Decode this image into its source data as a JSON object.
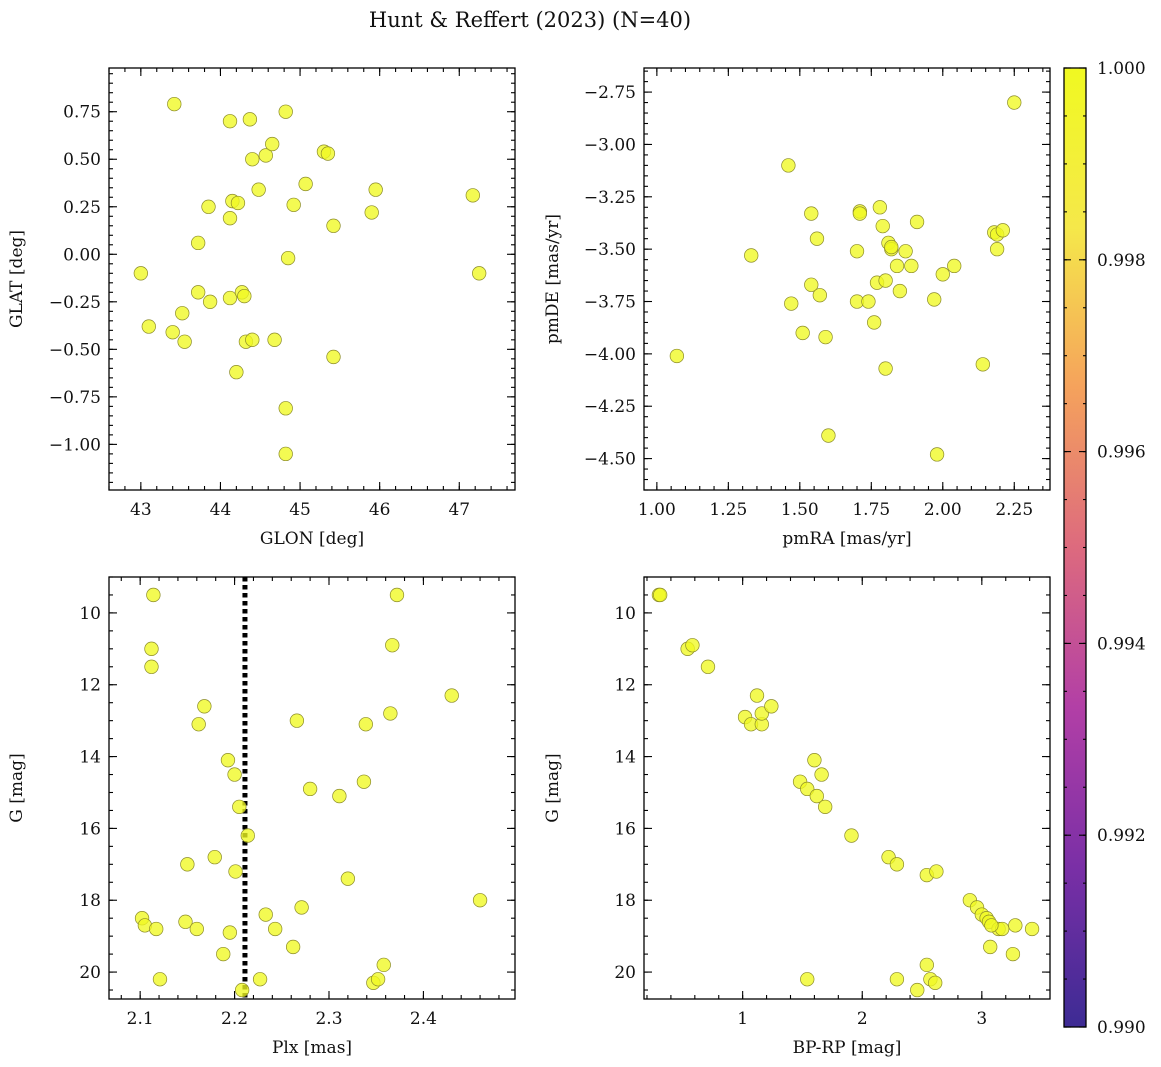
{
  "figure": {
    "title": "Hunt & Reffert (2023) (N=40)",
    "point_color": "#f0f921"
  },
  "colorbar": {
    "vmin": 0.99,
    "vmax": 1.0,
    "ticks": [
      "0.990",
      "0.992",
      "0.994",
      "0.996",
      "0.998",
      "1.000"
    ],
    "colormap": "plasma",
    "stops": [
      "#3d2b94",
      "#7a2fa6",
      "#b23fa6",
      "#dd6a7e",
      "#f5a25c",
      "#f5e84a",
      "#f0f921"
    ]
  },
  "chart_data": [
    {
      "id": "glon-glat",
      "type": "scatter",
      "title": "",
      "xlabel": "GLON [deg]",
      "ylabel": "GLAT [deg]",
      "xlim": [
        42.6,
        47.7
      ],
      "ylim": [
        -1.24,
        0.98
      ],
      "xticks": [
        43,
        44,
        45,
        46,
        47
      ],
      "xticklabels": [
        "43",
        "44",
        "45",
        "46",
        "47"
      ],
      "yticks": [
        -1.0,
        -0.75,
        -0.5,
        -0.25,
        0.0,
        0.25,
        0.5,
        0.75
      ],
      "yticklabels": [
        "−1.00",
        "−0.75",
        "−0.50",
        "−0.25",
        "0.00",
        "0.25",
        "0.50",
        "0.75"
      ],
      "xminor": 0.2,
      "yminor": 0.05,
      "points": [
        [
          43.0,
          -0.1
        ],
        [
          43.1,
          -0.38
        ],
        [
          43.42,
          0.79
        ],
        [
          43.4,
          -0.41
        ],
        [
          43.52,
          -0.31
        ],
        [
          43.55,
          -0.46
        ],
        [
          43.72,
          0.06
        ],
        [
          43.72,
          -0.2
        ],
        [
          43.85,
          0.25
        ],
        [
          43.87,
          -0.25
        ],
        [
          44.12,
          0.7
        ],
        [
          44.12,
          0.19
        ],
        [
          44.12,
          -0.23
        ],
        [
          44.15,
          0.28
        ],
        [
          44.2,
          -0.62
        ],
        [
          44.22,
          0.27
        ],
        [
          44.27,
          -0.2
        ],
        [
          44.3,
          -0.22
        ],
        [
          44.32,
          -0.46
        ],
        [
          44.37,
          0.71
        ],
        [
          44.4,
          0.5
        ],
        [
          44.4,
          -0.45
        ],
        [
          44.48,
          0.34
        ],
        [
          44.57,
          0.52
        ],
        [
          44.65,
          0.58
        ],
        [
          44.82,
          0.75
        ],
        [
          44.82,
          -0.81
        ],
        [
          44.82,
          -1.05
        ],
        [
          44.85,
          -0.02
        ],
        [
          44.92,
          0.26
        ],
        [
          45.07,
          0.37
        ],
        [
          45.3,
          0.54
        ],
        [
          45.35,
          0.53
        ],
        [
          45.42,
          0.15
        ],
        [
          45.42,
          -0.54
        ],
        [
          45.9,
          0.22
        ],
        [
          45.95,
          0.34
        ],
        [
          47.17,
          0.31
        ],
        [
          47.25,
          -0.1
        ],
        [
          44.68,
          -0.45
        ]
      ]
    },
    {
      "id": "pmra-pmde",
      "type": "scatter",
      "title": "",
      "xlabel": "pmRA [mas/yr]",
      "ylabel": "pmDE [mas/yr]",
      "xlim": [
        0.955,
        2.375
      ],
      "ylim": [
        -4.65,
        -2.635
      ],
      "xticks": [
        1.0,
        1.25,
        1.5,
        1.75,
        2.0,
        2.25
      ],
      "xticklabels": [
        "1.00",
        "1.25",
        "1.50",
        "1.75",
        "2.00",
        "2.25"
      ],
      "yticks": [
        -4.5,
        -4.25,
        -4.0,
        -3.75,
        -3.5,
        -3.25,
        -3.0,
        -2.75
      ],
      "yticklabels": [
        "−4.50",
        "−4.25",
        "−4.00",
        "−3.75",
        "−3.50",
        "−3.25",
        "−3.00",
        "−2.75"
      ],
      "xminor": 0.05,
      "yminor": 0.05,
      "points": [
        [
          1.07,
          -4.01
        ],
        [
          1.33,
          -3.53
        ],
        [
          1.46,
          -3.1
        ],
        [
          1.47,
          -3.76
        ],
        [
          1.51,
          -3.9
        ],
        [
          1.54,
          -3.33
        ],
        [
          1.54,
          -3.67
        ],
        [
          1.56,
          -3.45
        ],
        [
          1.57,
          -3.72
        ],
        [
          1.59,
          -3.92
        ],
        [
          1.6,
          -4.39
        ],
        [
          1.7,
          -3.51
        ],
        [
          1.7,
          -3.75
        ],
        [
          1.71,
          -3.32
        ],
        [
          1.71,
          -3.33
        ],
        [
          1.74,
          -3.75
        ],
        [
          1.76,
          -3.85
        ],
        [
          1.77,
          -3.66
        ],
        [
          1.78,
          -3.3
        ],
        [
          1.79,
          -3.39
        ],
        [
          1.8,
          -4.07
        ],
        [
          1.8,
          -3.65
        ],
        [
          1.81,
          -3.47
        ],
        [
          1.82,
          -3.5
        ],
        [
          1.82,
          -3.49
        ],
        [
          1.84,
          -3.58
        ],
        [
          1.85,
          -3.7
        ],
        [
          1.87,
          -3.51
        ],
        [
          1.89,
          -3.58
        ],
        [
          1.91,
          -3.37
        ],
        [
          1.97,
          -3.74
        ],
        [
          1.98,
          -4.48
        ],
        [
          2.0,
          -3.62
        ],
        [
          2.04,
          -3.58
        ],
        [
          2.14,
          -4.05
        ],
        [
          2.18,
          -3.42
        ],
        [
          2.19,
          -3.43
        ],
        [
          2.19,
          -3.5
        ],
        [
          2.21,
          -3.41
        ],
        [
          2.25,
          -2.8
        ]
      ]
    },
    {
      "id": "plx-g",
      "type": "scatter",
      "title": "",
      "xlabel": "Plx [mas]",
      "ylabel": "G [mag]",
      "xlim": [
        2.067,
        2.497
      ],
      "ylim": [
        20.75,
        9.0
      ],
      "xticks": [
        2.1,
        2.2,
        2.3,
        2.4
      ],
      "xticklabels": [
        "2.1",
        "2.2",
        "2.3",
        "2.4"
      ],
      "yticks": [
        10,
        12,
        14,
        16,
        18,
        20
      ],
      "yticklabels": [
        "10",
        "12",
        "14",
        "16",
        "18",
        "20"
      ],
      "xminor": 0.02,
      "yminor": 0.5,
      "vline": 2.211,
      "points": [
        [
          2.102,
          18.5
        ],
        [
          2.105,
          18.7
        ],
        [
          2.112,
          11.0
        ],
        [
          2.112,
          11.5
        ],
        [
          2.114,
          9.5
        ],
        [
          2.117,
          18.8
        ],
        [
          2.121,
          20.2
        ],
        [
          2.148,
          18.6
        ],
        [
          2.15,
          17.0
        ],
        [
          2.16,
          18.8
        ],
        [
          2.162,
          13.1
        ],
        [
          2.168,
          12.6
        ],
        [
          2.179,
          16.8
        ],
        [
          2.188,
          19.5
        ],
        [
          2.193,
          14.1
        ],
        [
          2.195,
          18.9
        ],
        [
          2.2,
          14.5
        ],
        [
          2.201,
          17.2
        ],
        [
          2.205,
          15.4
        ],
        [
          2.208,
          20.5
        ],
        [
          2.214,
          16.2
        ],
        [
          2.227,
          20.2
        ],
        [
          2.233,
          18.4
        ],
        [
          2.243,
          18.8
        ],
        [
          2.262,
          19.3
        ],
        [
          2.266,
          13.0
        ],
        [
          2.271,
          18.2
        ],
        [
          2.28,
          14.9
        ],
        [
          2.311,
          15.1
        ],
        [
          2.32,
          17.4
        ],
        [
          2.337,
          14.7
        ],
        [
          2.339,
          13.1
        ],
        [
          2.347,
          20.3
        ],
        [
          2.352,
          20.2
        ],
        [
          2.358,
          19.8
        ],
        [
          2.365,
          12.8
        ],
        [
          2.367,
          10.9
        ],
        [
          2.372,
          9.5
        ],
        [
          2.43,
          12.3
        ],
        [
          2.46,
          18.0
        ]
      ]
    },
    {
      "id": "bprp-g",
      "type": "scatter",
      "title": "",
      "xlabel": "BP-RP [mag]",
      "ylabel": "G [mag]",
      "xlim": [
        0.175,
        3.57
      ],
      "ylim": [
        20.75,
        9.0
      ],
      "xticks": [
        1,
        2,
        3
      ],
      "xticklabels": [
        "1",
        "2",
        "3"
      ],
      "yticks": [
        10,
        12,
        14,
        16,
        18,
        20
      ],
      "yticklabels": [
        "10",
        "12",
        "14",
        "16",
        "18",
        "20"
      ],
      "xminor": 0.2,
      "yminor": 0.5,
      "points": [
        [
          0.3,
          9.5
        ],
        [
          0.31,
          9.5
        ],
        [
          0.54,
          11.0
        ],
        [
          0.58,
          10.9
        ],
        [
          0.71,
          11.5
        ],
        [
          1.02,
          12.9
        ],
        [
          1.07,
          13.1
        ],
        [
          1.12,
          12.3
        ],
        [
          1.16,
          13.1
        ],
        [
          1.16,
          12.8
        ],
        [
          1.24,
          12.6
        ],
        [
          1.48,
          14.7
        ],
        [
          1.54,
          14.9
        ],
        [
          1.54,
          20.2
        ],
        [
          1.6,
          14.1
        ],
        [
          1.62,
          15.1
        ],
        [
          1.66,
          14.5
        ],
        [
          1.69,
          15.4
        ],
        [
          1.91,
          16.2
        ],
        [
          2.22,
          16.8
        ],
        [
          2.29,
          17.0
        ],
        [
          2.29,
          20.2
        ],
        [
          2.46,
          20.5
        ],
        [
          2.54,
          17.3
        ],
        [
          2.54,
          19.8
        ],
        [
          2.57,
          20.2
        ],
        [
          2.61,
          20.3
        ],
        [
          2.62,
          17.2
        ],
        [
          2.9,
          18.0
        ],
        [
          2.96,
          18.2
        ],
        [
          3.0,
          18.4
        ],
        [
          3.04,
          18.5
        ],
        [
          3.06,
          18.6
        ],
        [
          3.07,
          19.3
        ],
        [
          3.14,
          18.8
        ],
        [
          3.17,
          18.8
        ],
        [
          3.26,
          19.5
        ],
        [
          3.28,
          18.7
        ],
        [
          3.42,
          18.8
        ],
        [
          3.08,
          18.7
        ]
      ]
    }
  ]
}
